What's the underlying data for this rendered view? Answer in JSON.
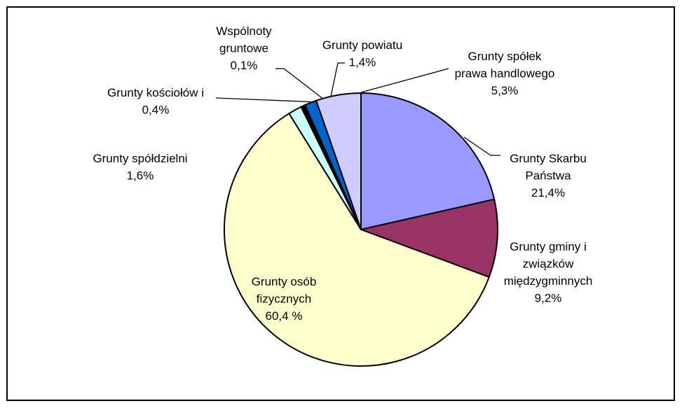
{
  "chart_data": {
    "type": "pie",
    "categories": [
      "Grunty Skarbu\nPaństwa",
      "Grunty gminy i\nzwiązków\nmiędzygminnych",
      "Grunty osób\nfizycznych",
      "Grunty spółdzielni",
      "Grunty kościołów i",
      "Wspólnoty\ngruntowe",
      "Grunty powiatu",
      "Grunty spółek\nprawa handlowego"
    ],
    "values": [
      21.4,
      9.2,
      60.4,
      1.6,
      0.4,
      0.1,
      1.4,
      5.3
    ],
    "value_labels": [
      "21,4%",
      "9,2%",
      "60,4 %",
      "1,6%",
      "0,4%",
      "0,1%",
      "1,4%",
      "5,3%"
    ],
    "colors": [
      "#9999ff",
      "#993366",
      "#ffffcc",
      "#ccffff",
      "#000000",
      "#000000",
      "#0066cc",
      "#ccccff"
    ]
  }
}
